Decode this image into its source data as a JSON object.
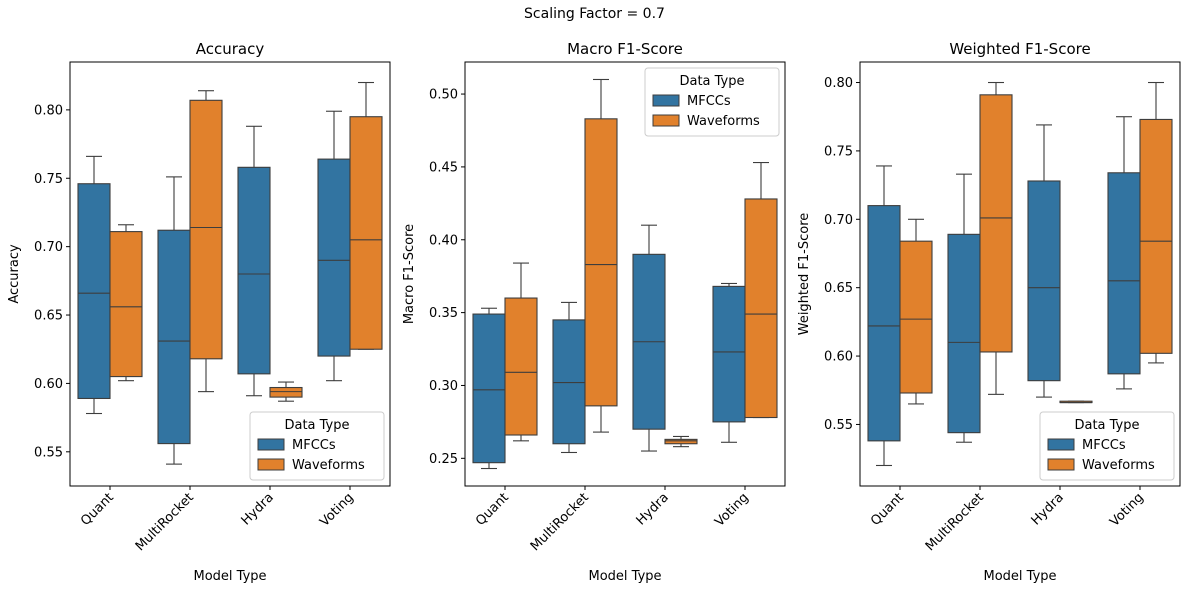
{
  "figure": {
    "suptitle": "Scaling Factor = 0.7"
  },
  "colors": {
    "MFCCs": "#3274a1",
    "Waveforms": "#e1812c",
    "edge": "#3d3d3d"
  },
  "chart_data": [
    {
      "type": "box",
      "title": "Accuracy",
      "xlabel": "Model Type",
      "ylabel": "Accuracy",
      "categories": [
        "Quant",
        "MultiRocket",
        "Hydra",
        "Voting"
      ],
      "ylim": [
        0.525,
        0.835
      ],
      "yticks": [
        0.55,
        0.6,
        0.65,
        0.7,
        0.75,
        0.8
      ],
      "ytick_labels": [
        "0.55",
        "0.60",
        "0.65",
        "0.70",
        "0.75",
        "0.80"
      ],
      "legend": {
        "title": "Data Type",
        "position": "lower-right"
      },
      "series": [
        {
          "name": "MFCCs",
          "boxes": [
            {
              "whislo": 0.578,
              "q1": 0.589,
              "med": 0.666,
              "q3": 0.746,
              "whishi": 0.766
            },
            {
              "whislo": 0.541,
              "q1": 0.556,
              "med": 0.631,
              "q3": 0.712,
              "whishi": 0.751
            },
            {
              "whislo": 0.591,
              "q1": 0.607,
              "med": 0.68,
              "q3": 0.758,
              "whishi": 0.788
            },
            {
              "whislo": 0.602,
              "q1": 0.62,
              "med": 0.69,
              "q3": 0.764,
              "whishi": 0.799
            }
          ]
        },
        {
          "name": "Waveforms",
          "boxes": [
            {
              "whislo": 0.602,
              "q1": 0.605,
              "med": 0.656,
              "q3": 0.711,
              "whishi": 0.716
            },
            {
              "whislo": 0.594,
              "q1": 0.618,
              "med": 0.714,
              "q3": 0.807,
              "whishi": 0.814
            },
            {
              "whislo": 0.587,
              "q1": 0.59,
              "med": 0.594,
              "q3": 0.597,
              "whishi": 0.601
            },
            {
              "whislo": 0.625,
              "q1": 0.625,
              "med": 0.705,
              "q3": 0.795,
              "whishi": 0.82
            }
          ]
        }
      ]
    },
    {
      "type": "box",
      "title": "Macro F1-Score",
      "xlabel": "Model Type",
      "ylabel": "Macro F1-Score",
      "categories": [
        "Quant",
        "MultiRocket",
        "Hydra",
        "Voting"
      ],
      "ylim": [
        0.231,
        0.522
      ],
      "yticks": [
        0.25,
        0.3,
        0.35,
        0.4,
        0.45,
        0.5
      ],
      "ytick_labels": [
        "0.25",
        "0.30",
        "0.35",
        "0.40",
        "0.45",
        "0.50"
      ],
      "legend": {
        "title": "Data Type",
        "position": "upper-right"
      },
      "series": [
        {
          "name": "MFCCs",
          "boxes": [
            {
              "whislo": 0.243,
              "q1": 0.247,
              "med": 0.297,
              "q3": 0.349,
              "whishi": 0.353
            },
            {
              "whislo": 0.254,
              "q1": 0.26,
              "med": 0.302,
              "q3": 0.345,
              "whishi": 0.357
            },
            {
              "whislo": 0.255,
              "q1": 0.27,
              "med": 0.33,
              "q3": 0.39,
              "whishi": 0.41
            },
            {
              "whislo": 0.261,
              "q1": 0.275,
              "med": 0.323,
              "q3": 0.368,
              "whishi": 0.37
            }
          ]
        },
        {
          "name": "Waveforms",
          "boxes": [
            {
              "whislo": 0.262,
              "q1": 0.266,
              "med": 0.309,
              "q3": 0.36,
              "whishi": 0.384
            },
            {
              "whislo": 0.268,
              "q1": 0.286,
              "med": 0.383,
              "q3": 0.483,
              "whishi": 0.51
            },
            {
              "whislo": 0.258,
              "q1": 0.26,
              "med": 0.262,
              "q3": 0.263,
              "whishi": 0.265
            },
            {
              "whislo": 0.278,
              "q1": 0.278,
              "med": 0.349,
              "q3": 0.428,
              "whishi": 0.453
            }
          ]
        }
      ]
    },
    {
      "type": "box",
      "title": "Weighted F1-Score",
      "xlabel": "Model Type",
      "ylabel": "Weighted F1-Score",
      "categories": [
        "Quant",
        "MultiRocket",
        "Hydra",
        "Voting"
      ],
      "ylim": [
        0.505,
        0.815
      ],
      "yticks": [
        0.55,
        0.6,
        0.65,
        0.7,
        0.75,
        0.8
      ],
      "ytick_labels": [
        "0.55",
        "0.60",
        "0.65",
        "0.70",
        "0.75",
        "0.80"
      ],
      "legend": {
        "title": "Data Type",
        "position": "lower-right"
      },
      "series": [
        {
          "name": "MFCCs",
          "boxes": [
            {
              "whislo": 0.52,
              "q1": 0.538,
              "med": 0.622,
              "q3": 0.71,
              "whishi": 0.739
            },
            {
              "whislo": 0.537,
              "q1": 0.544,
              "med": 0.61,
              "q3": 0.689,
              "whishi": 0.733
            },
            {
              "whislo": 0.57,
              "q1": 0.582,
              "med": 0.65,
              "q3": 0.728,
              "whishi": 0.769
            },
            {
              "whislo": 0.576,
              "q1": 0.587,
              "med": 0.655,
              "q3": 0.734,
              "whishi": 0.775
            }
          ]
        },
        {
          "name": "Waveforms",
          "boxes": [
            {
              "whislo": 0.565,
              "q1": 0.573,
              "med": 0.627,
              "q3": 0.684,
              "whishi": 0.7
            },
            {
              "whislo": 0.572,
              "q1": 0.603,
              "med": 0.701,
              "q3": 0.791,
              "whishi": 0.8
            },
            {
              "whislo": 0.566,
              "q1": 0.566,
              "med": 0.566,
              "q3": 0.567,
              "whishi": 0.567
            },
            {
              "whislo": 0.595,
              "q1": 0.602,
              "med": 0.684,
              "q3": 0.773,
              "whishi": 0.8
            }
          ]
        }
      ]
    }
  ]
}
